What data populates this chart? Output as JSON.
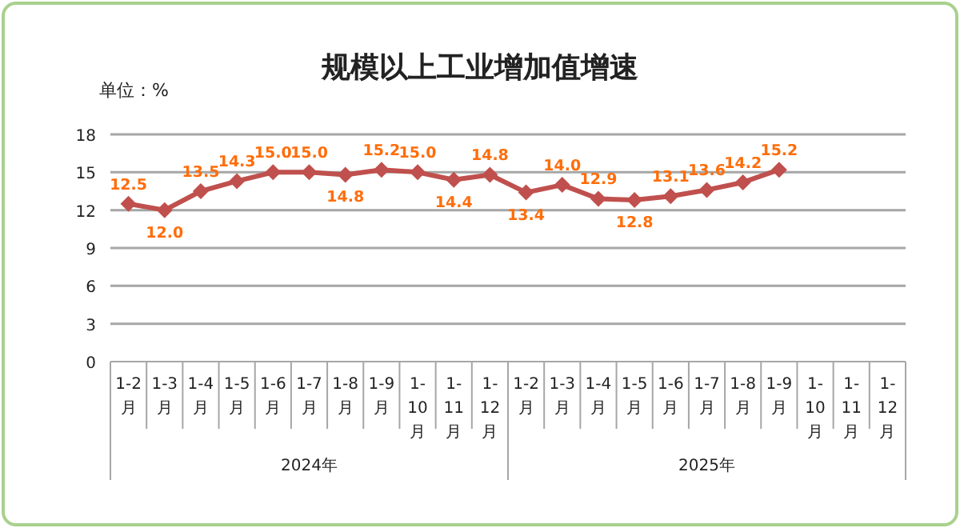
{
  "chart_data": {
    "type": "line",
    "title": "规模以上工业增加值增速",
    "ylabel": "单位：%",
    "categories": [
      "1-2月",
      "1-3月",
      "1-4月",
      "1-5月",
      "1-6月",
      "1-7月",
      "1-8月",
      "1-9月",
      "1-10月",
      "1-11月",
      "1-12月",
      "1-2月",
      "1-3月",
      "1-4月",
      "1-5月",
      "1-6月",
      "1-7月",
      "1-8月",
      "1-9月",
      "1-10月",
      "1-11月",
      "1-12月"
    ],
    "series": [
      {
        "color": "#c0504d",
        "values": [
          12.5,
          12.0,
          13.5,
          14.3,
          15.0,
          15.0,
          14.8,
          15.2,
          15.0,
          14.4,
          14.8,
          13.4,
          14.0,
          12.9,
          12.8,
          13.1,
          13.6,
          14.2,
          15.2,
          null,
          null,
          null
        ],
        "value_labels": [
          "12.5",
          "12.0",
          "13.5",
          "14.3",
          "15.0",
          "15.0",
          "14.8",
          "15.2",
          "15.0",
          "14.4",
          "14.8",
          "13.4",
          "14.0",
          "12.9",
          "12.8",
          "13.1",
          "13.6",
          "14.2",
          "15.2",
          null,
          null,
          null
        ]
      }
    ],
    "ylim": [
      0,
      18
    ],
    "yticks": [
      0,
      3,
      6,
      9,
      12,
      15,
      18
    ],
    "grid": "y",
    "marker": "diamond",
    "annotations": [
      "2024年",
      "2025年"
    ]
  }
}
